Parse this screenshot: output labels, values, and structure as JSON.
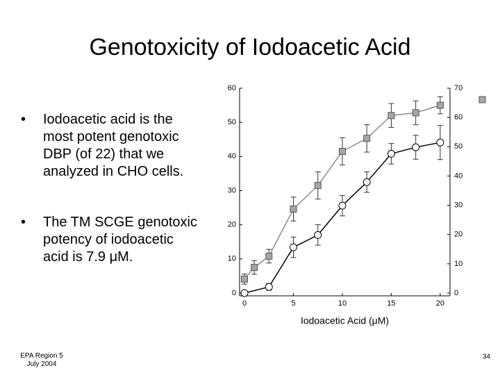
{
  "slide": {
    "title": "Genotoxicity of Iodoacetic Acid",
    "bullets": [
      "Iodoacetic acid is the most potent genotoxic DBP (of 22) that we analyzed in CHO cells.",
      "The TM SCGE genotoxic potency of iodoacetic acid is 7.9 μM."
    ],
    "footer": [
      "EPA Region 5",
      "July 2004"
    ],
    "page_number": "34"
  },
  "chart_data": {
    "type": "line",
    "xlabel": "Iodoacetic Acid (μM)",
    "xlim": [
      -0.5,
      21
    ],
    "xticks": [
      0,
      5,
      10,
      15,
      20
    ],
    "ylim": [
      0,
      60
    ],
    "yticks": [
      0,
      10,
      20,
      30,
      40,
      50,
      60
    ],
    "y2lim": [
      0,
      70
    ],
    "y2ticks": [
      0,
      10,
      20,
      30,
      40,
      50,
      60,
      70
    ],
    "series": [
      {
        "name": "square",
        "color": "#a6a6a6",
        "marker": "square",
        "line_color": "#8c8c8c",
        "x": [
          0,
          1,
          2.5,
          5,
          7.5,
          10,
          12.5,
          15,
          17.5,
          20
        ],
        "values": [
          4.1,
          7.5,
          10.8,
          24.6,
          31.5,
          41.5,
          45.3,
          52,
          52.8,
          55
        ],
        "errors": [
          1.5,
          2,
          2,
          3.5,
          4,
          4,
          4,
          3.5,
          3.5,
          2.5
        ]
      },
      {
        "name": "circle",
        "color": "#ffffff",
        "marker": "circle",
        "line_color": "#000000",
        "x": [
          0,
          2.5,
          5,
          7.5,
          10,
          12.5,
          15,
          17.5,
          20
        ],
        "values": [
          0,
          1.8,
          13.4,
          17,
          25.6,
          32.5,
          40.8,
          42.7,
          44.1
        ],
        "errors": [
          0.5,
          1,
          3,
          3,
          3,
          3,
          3,
          3.5,
          5
        ]
      }
    ]
  }
}
